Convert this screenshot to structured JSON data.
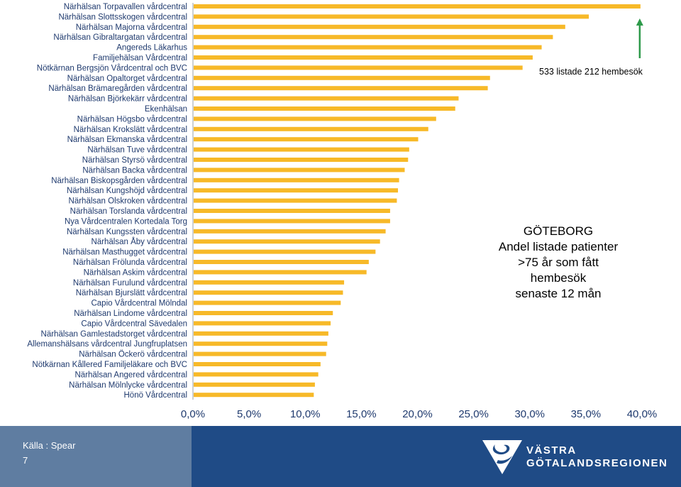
{
  "chart_data": {
    "type": "bar",
    "orientation": "horizontal",
    "title": "",
    "xlabel": "",
    "ylabel": "",
    "xlim": [
      0,
      40
    ],
    "x_ticks": [
      "0,0%",
      "5,0%",
      "10,0%",
      "15,0%",
      "20,0%",
      "25,0%",
      "30,0%",
      "35,0%",
      "40,0%"
    ],
    "grid": false,
    "bar_color": "#f7b928",
    "categories": [
      "Närhälsan Torpavallen vårdcentral",
      "Närhälsan Slottsskogen vårdcentral",
      "Närhälsan Majorna vårdcentral",
      "Närhälsan Gibraltargatan vårdcentral",
      "Angereds Läkarhus",
      "Familjehälsan Vårdcentral",
      "Nötkärnan Bergsjön Vårdcentral och BVC",
      "Närhälsan Opaltorget vårdcentral",
      "Närhälsan Brämaregården vårdcentral",
      "Närhälsan Björkekärr vårdcentral",
      "Ekenhälsan",
      "Närhälsan Högsbo vårdcentral",
      "Närhälsan Krokslätt vårdcentral",
      "Närhälsan Ekmanska vårdcentral",
      "Närhälsan Tuve vårdcentral",
      "Närhälsan Styrsö vårdcentral",
      "Närhälsan Backa vårdcentral",
      "Närhälsan Biskopsgården vårdcentral",
      "Närhälsan Kungshöjd vårdcentral",
      "Närhälsan Olskroken vårdcentral",
      "Närhälsan Torslanda vårdcentral",
      "Nya Vårdcentralen Kortedala Torg",
      "Närhälsan Kungssten vårdcentral",
      "Närhälsan Åby vårdcentral",
      "Närhälsan Masthugget vårdcentral",
      "Närhälsan Frölunda vårdcentral",
      "Närhälsan Askim vårdcentral",
      "Närhälsan Furulund vårdcentral",
      "Närhälsan Bjurslätt vårdcentral",
      "Capio Vårdcentral Mölndal",
      "Närhälsan Lindome vårdcentral",
      "Capio Vårdcentral Sävedalen",
      "Närhälsan Gamlestadstorget vårdcentral",
      "Allemanshälsans vårdcentral Jungfruplatsen",
      "Närhälsan Öckerö vårdcentral",
      "Nötkärnan Kållered Familjeläkare och BVC",
      "Närhälsan Angered vårdcentral",
      "Närhälsan Mölnlycke vårdcentral",
      "Hönö Vårdcentral"
    ],
    "values": [
      39.8,
      35.2,
      33.1,
      32.0,
      31.0,
      30.2,
      29.3,
      26.4,
      26.2,
      23.6,
      23.3,
      21.6,
      20.9,
      20.0,
      19.2,
      19.1,
      18.8,
      18.3,
      18.2,
      18.1,
      17.5,
      17.5,
      17.1,
      16.6,
      16.2,
      15.6,
      15.4,
      13.4,
      13.3,
      13.1,
      12.4,
      12.2,
      12.0,
      11.9,
      11.8,
      11.3,
      11.1,
      10.8,
      10.7
    ],
    "highlight": {
      "category_index": 0,
      "color": "#2e9a4a"
    }
  },
  "annotation": {
    "text": "533 listade 212 hembesök"
  },
  "callout": {
    "line1": "GÖTEBORG",
    "line2": "Andel listade patienter",
    "line3": ">75 år som fått",
    "line4": "hembesök",
    "line5": "senaste 12 mån"
  },
  "footer": {
    "source": "Källa : Spear",
    "page": "7",
    "logo_line1": "VÄSTRA",
    "logo_line2": "GÖTALANDSREGIONEN",
    "logo_icon": "vgr-logo-icon"
  }
}
